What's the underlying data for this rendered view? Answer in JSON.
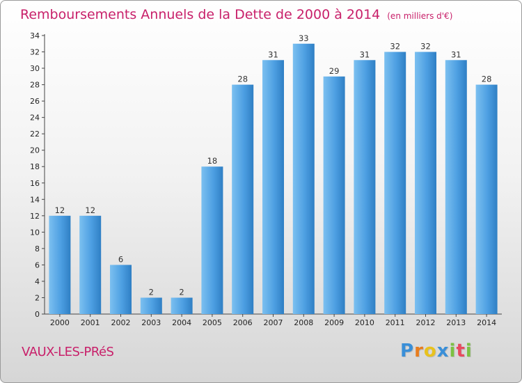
{
  "chart_data": {
    "type": "bar",
    "title": "Remboursements Annuels de la Dette de 2000 à 2014",
    "subtitle": "(en milliers d'€)",
    "categories": [
      "2000",
      "2001",
      "2002",
      "2003",
      "2004",
      "2005",
      "2006",
      "2007",
      "2008",
      "2009",
      "2010",
      "2011",
      "2012",
      "2013",
      "2014"
    ],
    "values": [
      12,
      12,
      6,
      2,
      2,
      18,
      28,
      31,
      33,
      29,
      31,
      32,
      32,
      31,
      28
    ],
    "ylim": [
      0,
      34
    ],
    "yticks": [
      0,
      2,
      4,
      6,
      8,
      10,
      12,
      14,
      16,
      18,
      20,
      22,
      24,
      26,
      28,
      30,
      32,
      34
    ],
    "grid": false,
    "data_labels": true,
    "bar_color": "#4a9ee0",
    "title_color": "#c8206a"
  },
  "commune": "VAUX-LES-PRéS",
  "logo": {
    "letters": [
      "P",
      "r",
      "o",
      "x",
      "i",
      "t",
      "i"
    ],
    "colors": [
      "#3a8fd8",
      "#e87d1e",
      "#e8c21e",
      "#3a8fd8",
      "#7cc142",
      "#e84a5f",
      "#7cc142"
    ]
  }
}
